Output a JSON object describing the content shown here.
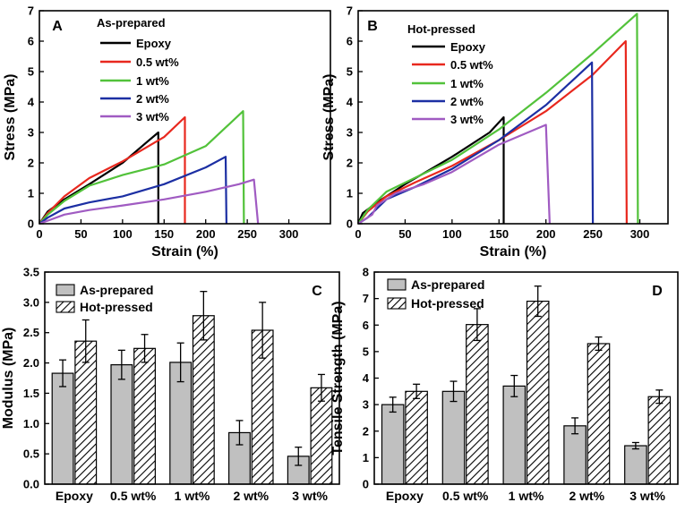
{
  "panels": {
    "A": {
      "label": "A",
      "legend_title": "As-prepared"
    },
    "B": {
      "label": "B",
      "legend_title": "Hot-pressed"
    },
    "C": {
      "label": "C"
    },
    "D": {
      "label": "D"
    }
  },
  "series_colors": {
    "Epoxy": "#000000",
    "0.5 wt%": "#e8281e",
    "1 wt%": "#52c23a",
    "2 wt%": "#1c2fa3",
    "3 wt%": "#a05bc2"
  },
  "bar_colors": {
    "as_prepared": "#c0c0c0",
    "hot_pressed": "hatch"
  },
  "chart_data": [
    {
      "id": "A",
      "type": "line",
      "title": "As-prepared",
      "xlabel": "Strain (%)",
      "ylabel": "Stress (MPa)",
      "xlim": [
        0,
        350
      ],
      "ylim": [
        0,
        7
      ],
      "xticks": [
        0,
        50,
        100,
        150,
        200,
        250,
        300
      ],
      "yticks": [
        0,
        1,
        2,
        3,
        4,
        5,
        6,
        7
      ],
      "legend": "top-left",
      "series": [
        {
          "name": "Epoxy",
          "x": [
            0,
            10,
            30,
            60,
            100,
            130,
            143,
            143
          ],
          "y": [
            0,
            0.4,
            0.8,
            1.3,
            2.0,
            2.7,
            3.0,
            0
          ]
        },
        {
          "name": "0.5 wt%",
          "x": [
            0,
            10,
            30,
            60,
            100,
            150,
            175,
            175
          ],
          "y": [
            0,
            0.35,
            0.9,
            1.5,
            2.05,
            2.85,
            3.5,
            0
          ]
        },
        {
          "name": "1 wt%",
          "x": [
            0,
            10,
            30,
            60,
            100,
            150,
            200,
            245,
            246
          ],
          "y": [
            0,
            0.3,
            0.75,
            1.25,
            1.6,
            1.95,
            2.55,
            3.7,
            0
          ]
        },
        {
          "name": "2 wt%",
          "x": [
            0,
            10,
            30,
            60,
            100,
            150,
            200,
            224,
            225
          ],
          "y": [
            0,
            0.2,
            0.5,
            0.7,
            0.9,
            1.3,
            1.85,
            2.2,
            0
          ]
        },
        {
          "name": "3 wt%",
          "x": [
            0,
            10,
            30,
            60,
            100,
            150,
            200,
            240,
            258,
            263
          ],
          "y": [
            0,
            0.1,
            0.3,
            0.45,
            0.6,
            0.8,
            1.05,
            1.3,
            1.45,
            0
          ]
        }
      ]
    },
    {
      "id": "B",
      "type": "line",
      "title": "Hot-pressed",
      "xlabel": "Strain (%)",
      "ylabel": "Stress (MPa)",
      "xlim": [
        0,
        330
      ],
      "ylim": [
        0,
        7
      ],
      "xticks": [
        0,
        50,
        100,
        150,
        200,
        250,
        300
      ],
      "yticks": [
        0,
        1,
        2,
        3,
        4,
        5,
        6,
        7
      ],
      "legend": "top-left",
      "series": [
        {
          "name": "Epoxy",
          "x": [
            0,
            5,
            20,
            50,
            100,
            140,
            155,
            155
          ],
          "y": [
            0,
            0.35,
            0.7,
            1.3,
            2.2,
            3.0,
            3.5,
            0
          ]
        },
        {
          "name": "0.5 wt%",
          "x": [
            0,
            10,
            30,
            60,
            100,
            150,
            200,
            250,
            285,
            286
          ],
          "y": [
            0,
            0.4,
            0.9,
            1.35,
            1.9,
            2.75,
            3.7,
            4.9,
            6.0,
            0
          ]
        },
        {
          "name": "1 wt%",
          "x": [
            0,
            10,
            30,
            60,
            100,
            150,
            200,
            250,
            297,
            298
          ],
          "y": [
            0,
            0.45,
            1.05,
            1.5,
            2.1,
            3.1,
            4.3,
            5.6,
            6.9,
            0
          ]
        },
        {
          "name": "2 wt%",
          "x": [
            0,
            10,
            30,
            60,
            100,
            150,
            200,
            249,
            250
          ],
          "y": [
            0,
            0.2,
            0.8,
            1.2,
            1.8,
            2.75,
            3.9,
            5.3,
            0
          ]
        },
        {
          "name": "3 wt%",
          "x": [
            0,
            15,
            20,
            40,
            70,
            100,
            150,
            200,
            204
          ],
          "y": [
            0,
            0.3,
            0.6,
            1.0,
            1.3,
            1.7,
            2.6,
            3.25,
            0
          ]
        }
      ]
    },
    {
      "id": "C",
      "type": "bar",
      "xlabel": "",
      "ylabel": "Modulus (MPa)",
      "ylim": [
        0,
        3.5
      ],
      "yticks": [
        "0.0",
        "0.5",
        "1.0",
        "1.5",
        "2.0",
        "2.5",
        "3.0",
        "3.5"
      ],
      "categories": [
        "Epoxy",
        "0.5 wt%",
        "1 wt%",
        "2 wt%",
        "3 wt%"
      ],
      "legend": "top-left",
      "series": [
        {
          "name": "As-prepared",
          "values": [
            1.83,
            1.97,
            2.01,
            0.85,
            0.46
          ],
          "errors": [
            0.22,
            0.24,
            0.32,
            0.2,
            0.15
          ]
        },
        {
          "name": "Hot-pressed",
          "values": [
            2.36,
            2.24,
            2.78,
            2.54,
            1.59
          ],
          "errors": [
            0.35,
            0.23,
            0.4,
            0.46,
            0.22
          ]
        }
      ]
    },
    {
      "id": "D",
      "type": "bar",
      "xlabel": "",
      "ylabel": "Tensile Strength (MPa)",
      "ylim": [
        0,
        8
      ],
      "yticks": [
        "0",
        "1",
        "2",
        "3",
        "4",
        "5",
        "6",
        "7",
        "8"
      ],
      "categories": [
        "Epoxy",
        "0.5 wt%",
        "1 wt%",
        "2 wt%",
        "3 wt%"
      ],
      "legend": "top-left",
      "series": [
        {
          "name": "As-prepared",
          "values": [
            3.0,
            3.5,
            3.7,
            2.2,
            1.45
          ],
          "errors": [
            0.28,
            0.38,
            0.4,
            0.3,
            0.12
          ]
        },
        {
          "name": "Hot-pressed",
          "values": [
            3.5,
            6.02,
            6.9,
            5.3,
            3.3
          ],
          "errors": [
            0.27,
            0.6,
            0.57,
            0.25,
            0.25
          ]
        }
      ]
    }
  ]
}
